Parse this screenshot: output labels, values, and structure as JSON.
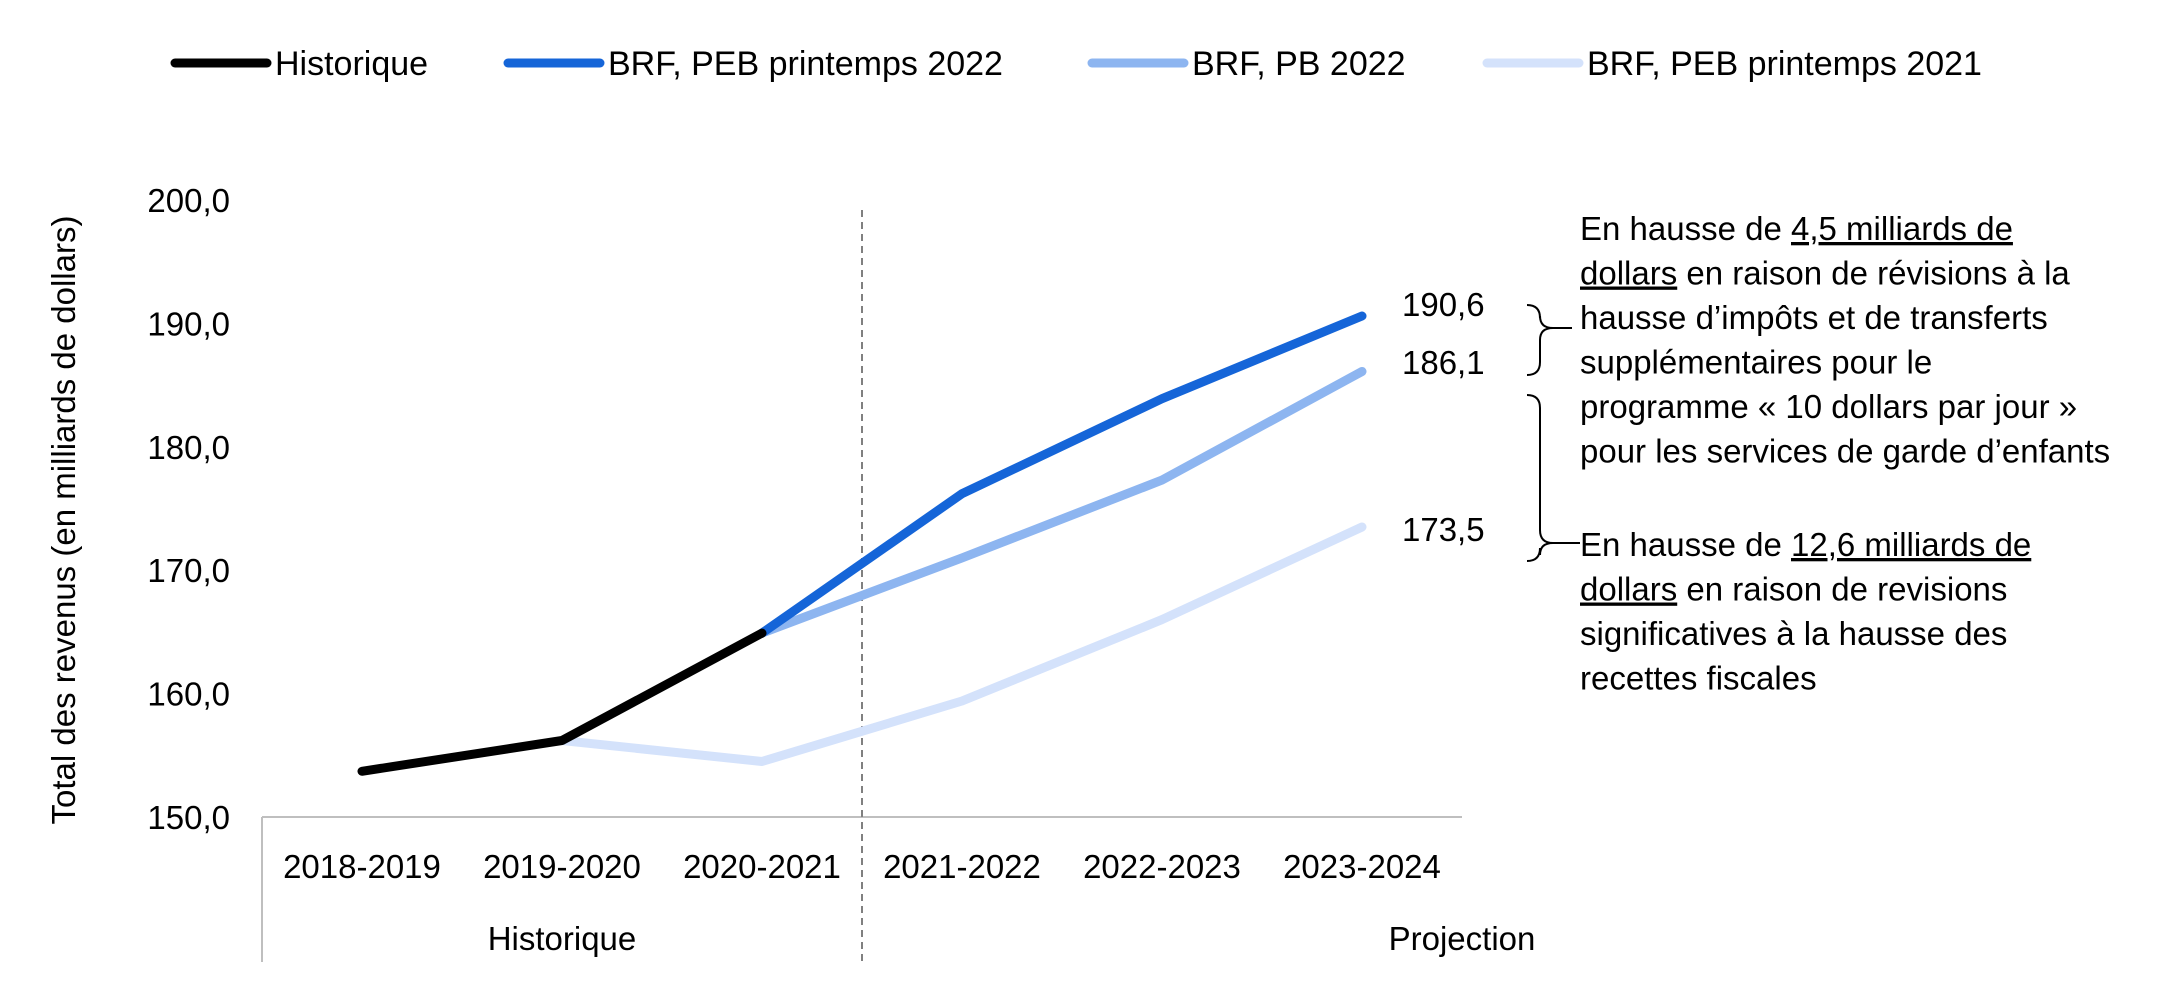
{
  "chart_data": {
    "type": "line",
    "ylabel": "Total des revenus (en milliards de dollars)",
    "xlabel": "",
    "ylim": [
      150,
      200
    ],
    "yticks": [
      "150,0",
      "160,0",
      "170,0",
      "180,0",
      "190,0",
      "200,0"
    ],
    "categories": [
      "2018-2019",
      "2019-2020",
      "2020-2021",
      "2021-2022",
      "2022-2023",
      "2023-2024"
    ],
    "groups": [
      {
        "label": "Historique",
        "categories": [
          "2018-2019",
          "2019-2020",
          "2020-2021"
        ]
      },
      {
        "label": "Projection",
        "categories": [
          "2021-2022",
          "2022-2023",
          "2023-2024"
        ]
      }
    ],
    "divider_after_category": "2020-2021",
    "series": [
      {
        "name": "Historique",
        "color": "#000000",
        "values": [
          153.7,
          156.2,
          164.9,
          null,
          null,
          null
        ]
      },
      {
        "name": "BRF, PEB printemps 2022",
        "color": "#1565d8",
        "values": [
          null,
          null,
          164.9,
          176.2,
          183.9,
          190.6
        ]
      },
      {
        "name": "BRF, PB 2022",
        "color": "#8db5f0",
        "values": [
          null,
          null,
          164.9,
          171.0,
          177.3,
          186.1
        ]
      },
      {
        "name": "BRF, PEB printemps 2021",
        "color": "#d4e2fb",
        "values": [
          null,
          156.2,
          154.5,
          159.4,
          166.0,
          173.5
        ]
      }
    ],
    "end_labels": [
      "190,6",
      "186,1",
      "173,5"
    ],
    "legend_position": "top",
    "grid": false,
    "annotations": [
      {
        "segments": [
          {
            "text": "En hausse de ",
            "underline": false
          },
          {
            "text": "4,5 milliards de dollars",
            "underline": true
          },
          {
            "text": " en raison de révisions à la hausse d’impôts et de transferts supplémentaires pour le programme « 10 dollars par jour » pour les services de garde d’enfants",
            "underline": false
          }
        ]
      },
      {
        "segments": [
          {
            "text": "En hausse de ",
            "underline": false
          },
          {
            "text": "12,6 milliards de dollars",
            "underline": true
          },
          {
            "text": " en raison de revisions significatives à la hausse des recettes fiscales",
            "underline": false
          }
        ]
      }
    ]
  }
}
